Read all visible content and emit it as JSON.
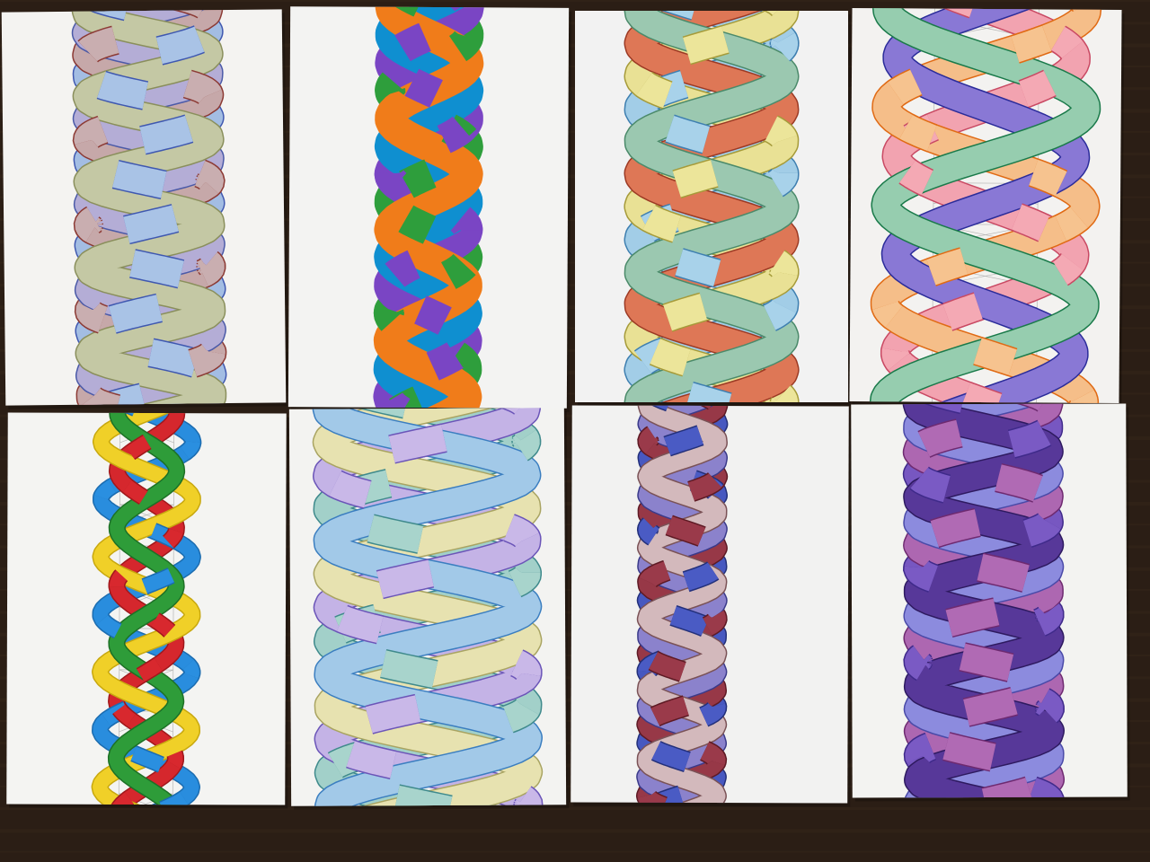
{
  "background": {
    "color": "#2b1e15",
    "grain_color": "#3a2a1d"
  },
  "sheets": [
    {
      "id": "sheet-1",
      "paper": "#f4f3f1",
      "style": "outlined",
      "pencil_grid": true,
      "strands": [
        {
          "fill": "#a9c3e6",
          "stroke": "#3f58b0",
          "phase": 0.0,
          "amp": 0.9,
          "loops": 4.6
        },
        {
          "fill": "#c9aeb0",
          "stroke": "#8c3a34",
          "phase": 1.57,
          "amp": 0.9,
          "loops": 4.6
        },
        {
          "fill": "#b9b2d8",
          "stroke": "#4b5aa8",
          "phase": 3.14,
          "amp": 0.9,
          "loops": 4.6
        },
        {
          "fill": "#c7cba8",
          "stroke": "#8a8f5c",
          "phase": 4.71,
          "amp": 0.9,
          "loops": 4.6
        }
      ]
    },
    {
      "id": "sheet-2",
      "paper": "#f3f3f2",
      "style": "marker",
      "pencil_grid": true,
      "strands": [
        {
          "fill": "#2e9e3c",
          "stroke": "#1e6f29",
          "phase": 0.0,
          "amp": 0.55,
          "loops": 3.6
        },
        {
          "fill": "#7a45c4",
          "stroke": "#4d2a8a",
          "phase": 1.57,
          "amp": 0.55,
          "loops": 3.6
        },
        {
          "fill": "#0f8fd0",
          "stroke": "#0a5f92",
          "phase": 3.14,
          "amp": 0.55,
          "loops": 3.6
        },
        {
          "fill": "#f07c1a",
          "stroke": "#b55308",
          "phase": 4.71,
          "amp": 0.55,
          "loops": 3.6
        }
      ]
    },
    {
      "id": "sheet-3",
      "paper": "#f2f2f2",
      "style": "outlined",
      "pencil_grid": false,
      "strands": [
        {
          "fill": "#a8d2ea",
          "stroke": "#3e7fb0",
          "phase": 0.0,
          "amp": 0.95,
          "loops": 3.0
        },
        {
          "fill": "#ece59a",
          "stroke": "#a69b3a",
          "phase": 1.57,
          "amp": 0.95,
          "loops": 3.0
        },
        {
          "fill": "#e27a5a",
          "stroke": "#9c3a24",
          "phase": 3.14,
          "amp": 0.95,
          "loops": 3.0
        },
        {
          "fill": "#9fcbb4",
          "stroke": "#4b8a6a",
          "phase": 4.71,
          "amp": 0.95,
          "loops": 3.0
        }
      ]
    },
    {
      "id": "sheet-4",
      "paper": "#f3f2f0",
      "style": "outlined",
      "pencil_grid": true,
      "strands": [
        {
          "fill": "#f4a9b4",
          "stroke": "#c94963",
          "phase": 0.0,
          "amp": 0.85,
          "loops": 2.0
        },
        {
          "fill": "#f6c38f",
          "stroke": "#e06a14",
          "phase": 1.57,
          "amp": 0.95,
          "loops": 2.0
        },
        {
          "fill": "#8e7cd8",
          "stroke": "#2b2c9a",
          "phase": 3.14,
          "amp": 0.85,
          "loops": 2.0
        },
        {
          "fill": "#9dd2b4",
          "stroke": "#1a7a4a",
          "phase": 4.71,
          "amp": 0.95,
          "loops": 2.0
        }
      ]
    },
    {
      "id": "sheet-5",
      "paper": "#f4f4f2",
      "style": "thin",
      "pencil_grid": true,
      "strands": [
        {
          "fill": "#2a8fe0",
          "stroke": "#1b6cb0",
          "phase": 0.0,
          "amp": 0.85,
          "loops": 3.4
        },
        {
          "fill": "#d8282e",
          "stroke": "#a0181c",
          "phase": 1.57,
          "amp": 0.55,
          "loops": 3.4
        },
        {
          "fill": "#f2d22a",
          "stroke": "#c8a80e",
          "phase": 3.14,
          "amp": 0.85,
          "loops": 3.4
        },
        {
          "fill": "#2f9e3a",
          "stroke": "#1d7026",
          "phase": 4.71,
          "amp": 0.55,
          "loops": 3.4
        }
      ]
    },
    {
      "id": "sheet-6",
      "paper": "#f3f3f1",
      "style": "outlined",
      "pencil_grid": false,
      "strands": [
        {
          "fill": "#a8d4cc",
          "stroke": "#3f8a8c",
          "phase": 0.0,
          "amp": 0.95,
          "loops": 3.0
        },
        {
          "fill": "#c9b8e8",
          "stroke": "#6b55b8",
          "phase": 1.57,
          "amp": 0.95,
          "loops": 3.0
        },
        {
          "fill": "#eae6b4",
          "stroke": "#a9a462",
          "phase": 3.14,
          "amp": 0.95,
          "loops": 3.0
        },
        {
          "fill": "#a8cdea",
          "stroke": "#3b7ec0",
          "phase": 4.71,
          "amp": 0.95,
          "loops": 3.0
        }
      ]
    },
    {
      "id": "sheet-7",
      "paper": "#f2f2f1",
      "style": "outlined",
      "pencil_grid": true,
      "strands": [
        {
          "fill": "#4a5bc4",
          "stroke": "#23307a",
          "phase": 0.0,
          "amp": 0.8,
          "loops": 5.6
        },
        {
          "fill": "#9a3a4a",
          "stroke": "#5e1a24",
          "phase": 1.57,
          "amp": 0.8,
          "loops": 5.6
        },
        {
          "fill": "#8f86d0",
          "stroke": "#3a3a8a",
          "phase": 3.14,
          "amp": 0.8,
          "loops": 5.6
        },
        {
          "fill": "#d8bfc2",
          "stroke": "#7a5256",
          "phase": 4.71,
          "amp": 0.8,
          "loops": 5.6
        }
      ]
    },
    {
      "id": "sheet-8",
      "paper": "#f3f3f1",
      "style": "outlined",
      "pencil_grid": true,
      "strands": [
        {
          "fill": "#7a5ac4",
          "stroke": "#3f2a8a",
          "phase": 0.0,
          "amp": 0.85,
          "loops": 4.2
        },
        {
          "fill": "#b06ab4",
          "stroke": "#6e2a70",
          "phase": 1.57,
          "amp": 0.85,
          "loops": 4.2
        },
        {
          "fill": "#8f8ee0",
          "stroke": "#4a4aa8",
          "phase": 3.14,
          "amp": 0.85,
          "loops": 4.2
        },
        {
          "fill": "#5a3a9c",
          "stroke": "#2e1a60",
          "phase": 4.71,
          "amp": 0.85,
          "loops": 4.2
        }
      ]
    }
  ]
}
